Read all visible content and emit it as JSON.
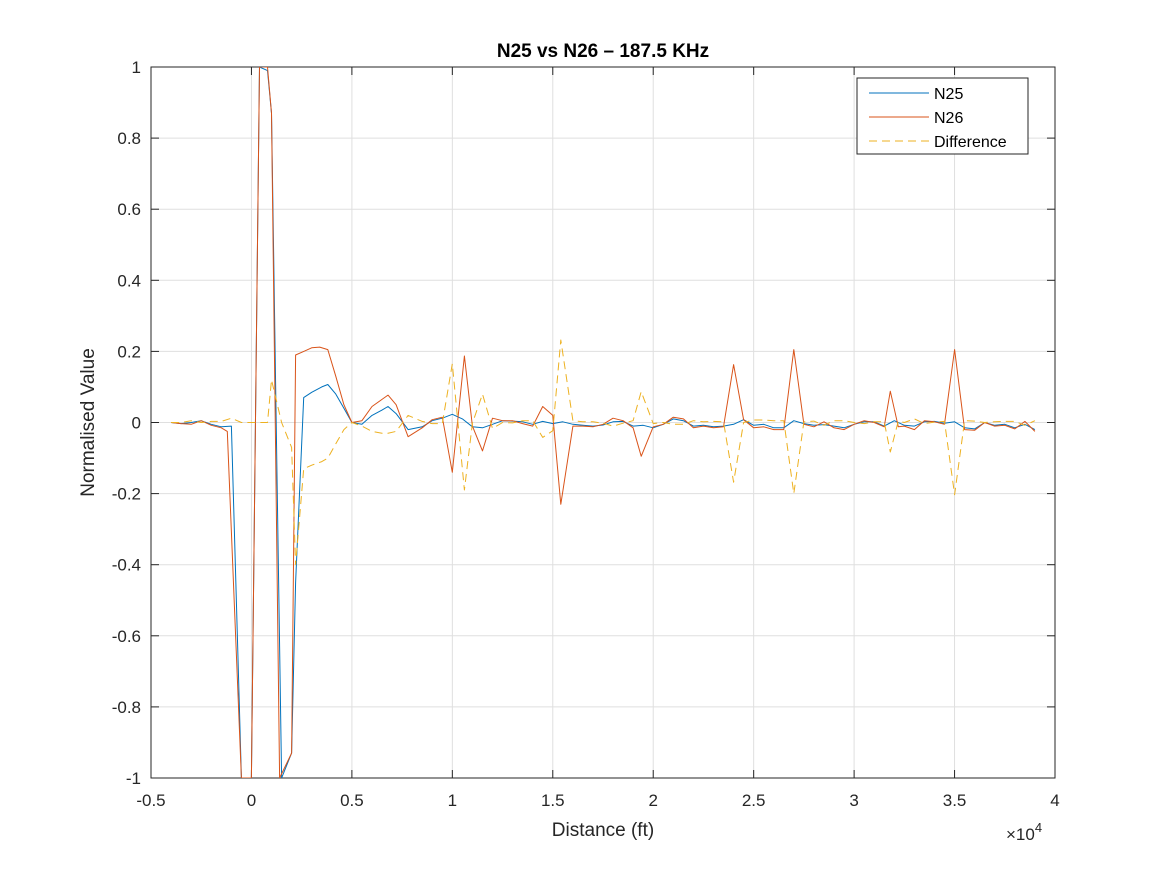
{
  "chart_data": {
    "type": "line",
    "title": "N25 vs N26 – 187.5 KHz",
    "xlabel": "Distance (ft)",
    "ylabel": "Normalised Value",
    "x_exponent_base": "×10",
    "x_exponent_power": "4",
    "xlim": [
      -0.5,
      4
    ],
    "ylim": [
      -1,
      1
    ],
    "grid": true,
    "legend_position": "top-right",
    "x_ticks": [
      -0.5,
      0,
      0.5,
      1,
      1.5,
      2,
      2.5,
      3,
      3.5,
      4
    ],
    "x_tick_labels": [
      "-0.5",
      "0",
      "0.5",
      "1",
      "1.5",
      "2",
      "2.5",
      "3",
      "3.5",
      "4"
    ],
    "y_ticks": [
      -1,
      -0.8,
      -0.6,
      -0.4,
      -0.2,
      0,
      0.2,
      0.4,
      0.6,
      0.8,
      1
    ],
    "y_tick_labels": [
      "-1",
      "-0.8",
      "-0.6",
      "-0.4",
      "-0.2",
      "0",
      "0.2",
      "0.4",
      "0.6",
      "0.8",
      "1"
    ],
    "series": [
      {
        "name": "N25",
        "color": "#0072BD",
        "dash": "solid",
        "points": [
          [
            -0.4,
            0
          ],
          [
            -0.35,
            -0.003
          ],
          [
            -0.3,
            0
          ],
          [
            -0.25,
            0.005
          ],
          [
            -0.2,
            -0.005
          ],
          [
            -0.15,
            -0.012
          ],
          [
            -0.1,
            -0.01
          ],
          [
            -0.05,
            -1.0
          ],
          [
            0.0,
            -1.0
          ],
          [
            0.04,
            1.0
          ],
          [
            0.08,
            0.99
          ],
          [
            0.1,
            0.87
          ],
          [
            0.15,
            -1.0
          ],
          [
            0.2,
            -0.93
          ],
          [
            0.22,
            -0.45
          ],
          [
            0.26,
            0.07
          ],
          [
            0.3,
            0.085
          ],
          [
            0.35,
            0.1
          ],
          [
            0.38,
            0.107
          ],
          [
            0.42,
            0.08
          ],
          [
            0.46,
            0.04
          ],
          [
            0.5,
            0.0
          ],
          [
            0.55,
            -0.005
          ],
          [
            0.6,
            0.02
          ],
          [
            0.65,
            0.035
          ],
          [
            0.68,
            0.045
          ],
          [
            0.72,
            0.025
          ],
          [
            0.78,
            -0.02
          ],
          [
            0.85,
            -0.012
          ],
          [
            0.9,
            0.005
          ],
          [
            0.95,
            0.012
          ],
          [
            1.0,
            0.023
          ],
          [
            1.05,
            0.01
          ],
          [
            1.1,
            -0.012
          ],
          [
            1.15,
            -0.015
          ],
          [
            1.2,
            -0.005
          ],
          [
            1.25,
            0.005
          ],
          [
            1.3,
            0.004
          ],
          [
            1.35,
            0.002
          ],
          [
            1.4,
            -0.005
          ],
          [
            1.45,
            0.003
          ],
          [
            1.5,
            -0.003
          ],
          [
            1.55,
            0.002
          ],
          [
            1.6,
            -0.005
          ],
          [
            1.65,
            -0.008
          ],
          [
            1.7,
            -0.01
          ],
          [
            1.75,
            -0.007
          ],
          [
            1.8,
            0.002
          ],
          [
            1.85,
            0.003
          ],
          [
            1.9,
            -0.01
          ],
          [
            1.95,
            -0.008
          ],
          [
            2.0,
            -0.015
          ],
          [
            2.05,
            -0.005
          ],
          [
            2.1,
            0.01
          ],
          [
            2.15,
            0.005
          ],
          [
            2.2,
            -0.01
          ],
          [
            2.25,
            -0.008
          ],
          [
            2.3,
            -0.012
          ],
          [
            2.35,
            -0.01
          ],
          [
            2.4,
            -0.005
          ],
          [
            2.45,
            0.008
          ],
          [
            2.5,
            -0.008
          ],
          [
            2.55,
            -0.005
          ],
          [
            2.6,
            -0.015
          ],
          [
            2.65,
            -0.015
          ],
          [
            2.7,
            0.005
          ],
          [
            2.75,
            -0.003
          ],
          [
            2.8,
            -0.008
          ],
          [
            2.85,
            -0.006
          ],
          [
            2.9,
            -0.01
          ],
          [
            2.95,
            -0.015
          ],
          [
            3.0,
            -0.005
          ],
          [
            3.05,
            0.002
          ],
          [
            3.1,
            0.002
          ],
          [
            3.15,
            -0.01
          ],
          [
            3.2,
            0.005
          ],
          [
            3.25,
            -0.008
          ],
          [
            3.3,
            -0.01
          ],
          [
            3.35,
            0.002
          ],
          [
            3.4,
            0.003
          ],
          [
            3.45,
            -0.002
          ],
          [
            3.5,
            0.002
          ],
          [
            3.55,
            -0.015
          ],
          [
            3.6,
            -0.018
          ],
          [
            3.65,
            0.0
          ],
          [
            3.7,
            -0.008
          ],
          [
            3.75,
            -0.005
          ],
          [
            3.8,
            -0.015
          ],
          [
            3.85,
            -0.005
          ],
          [
            3.9,
            -0.02
          ]
        ]
      },
      {
        "name": "N26",
        "color": "#D95319",
        "dash": "solid",
        "points": [
          [
            -0.4,
            0
          ],
          [
            -0.35,
            -0.003
          ],
          [
            -0.3,
            -0.005
          ],
          [
            -0.25,
            0.005
          ],
          [
            -0.2,
            -0.008
          ],
          [
            -0.15,
            -0.015
          ],
          [
            -0.12,
            -0.025
          ],
          [
            -0.05,
            -1.0
          ],
          [
            0.0,
            -1.0
          ],
          [
            0.04,
            1.0
          ],
          [
            0.08,
            1.0
          ],
          [
            0.1,
            0.87
          ],
          [
            0.14,
            -1.0
          ],
          [
            0.2,
            -0.93
          ],
          [
            0.22,
            0.19
          ],
          [
            0.26,
            0.2
          ],
          [
            0.3,
            0.21
          ],
          [
            0.34,
            0.212
          ],
          [
            0.38,
            0.205
          ],
          [
            0.42,
            0.13
          ],
          [
            0.46,
            0.05
          ],
          [
            0.5,
            0.0
          ],
          [
            0.55,
            0.005
          ],
          [
            0.6,
            0.045
          ],
          [
            0.65,
            0.065
          ],
          [
            0.68,
            0.077
          ],
          [
            0.72,
            0.05
          ],
          [
            0.78,
            -0.04
          ],
          [
            0.85,
            -0.015
          ],
          [
            0.9,
            0.008
          ],
          [
            0.95,
            0.015
          ],
          [
            1.0,
            -0.14
          ],
          [
            1.06,
            0.187
          ],
          [
            1.1,
            -0.01
          ],
          [
            1.15,
            -0.08
          ],
          [
            1.2,
            0.012
          ],
          [
            1.25,
            0.005
          ],
          [
            1.3,
            0.005
          ],
          [
            1.35,
            -0.003
          ],
          [
            1.4,
            -0.01
          ],
          [
            1.45,
            0.045
          ],
          [
            1.5,
            0.02
          ],
          [
            1.54,
            -0.23
          ],
          [
            1.6,
            -0.01
          ],
          [
            1.65,
            -0.01
          ],
          [
            1.7,
            -0.012
          ],
          [
            1.75,
            -0.005
          ],
          [
            1.8,
            0.012
          ],
          [
            1.85,
            0.005
          ],
          [
            1.9,
            -0.015
          ],
          [
            1.94,
            -0.095
          ],
          [
            2.0,
            -0.012
          ],
          [
            2.05,
            -0.005
          ],
          [
            2.1,
            0.015
          ],
          [
            2.15,
            0.01
          ],
          [
            2.2,
            -0.015
          ],
          [
            2.25,
            -0.01
          ],
          [
            2.3,
            -0.015
          ],
          [
            2.35,
            -0.012
          ],
          [
            2.4,
            0.163
          ],
          [
            2.45,
            0.008
          ],
          [
            2.5,
            -0.015
          ],
          [
            2.55,
            -0.012
          ],
          [
            2.6,
            -0.02
          ],
          [
            2.65,
            -0.02
          ],
          [
            2.7,
            0.205
          ],
          [
            2.75,
            -0.005
          ],
          [
            2.8,
            -0.012
          ],
          [
            2.85,
            0.002
          ],
          [
            2.9,
            -0.015
          ],
          [
            2.95,
            -0.02
          ],
          [
            3.0,
            -0.005
          ],
          [
            3.05,
            0.005
          ],
          [
            3.1,
            0.0
          ],
          [
            3.15,
            -0.012
          ],
          [
            3.18,
            0.088
          ],
          [
            3.22,
            -0.012
          ],
          [
            3.25,
            -0.01
          ],
          [
            3.3,
            -0.02
          ],
          [
            3.35,
            0.005
          ],
          [
            3.4,
            0.002
          ],
          [
            3.45,
            -0.005
          ],
          [
            3.5,
            0.205
          ],
          [
            3.55,
            -0.02
          ],
          [
            3.6,
            -0.022
          ],
          [
            3.65,
            0.0
          ],
          [
            3.7,
            -0.01
          ],
          [
            3.75,
            -0.008
          ],
          [
            3.8,
            -0.018
          ],
          [
            3.85,
            0.003
          ],
          [
            3.9,
            -0.025
          ]
        ]
      },
      {
        "name": "Difference",
        "color": "#EDB120",
        "dash": "dashed",
        "points": [
          [
            -0.4,
            0
          ],
          [
            -0.35,
            0.0
          ],
          [
            -0.3,
            0.005
          ],
          [
            -0.25,
            0.0
          ],
          [
            -0.2,
            0.003
          ],
          [
            -0.15,
            0.003
          ],
          [
            -0.1,
            0.012
          ],
          [
            -0.05,
            0.0
          ],
          [
            0.0,
            0.0
          ],
          [
            0.04,
            0.0
          ],
          [
            0.08,
            0.0
          ],
          [
            0.1,
            0.12
          ],
          [
            0.15,
            0.0
          ],
          [
            0.2,
            -0.07
          ],
          [
            0.22,
            -0.4
          ],
          [
            0.26,
            -0.13
          ],
          [
            0.3,
            -0.12
          ],
          [
            0.35,
            -0.11
          ],
          [
            0.38,
            -0.1
          ],
          [
            0.42,
            -0.06
          ],
          [
            0.46,
            -0.02
          ],
          [
            0.5,
            0.0
          ],
          [
            0.55,
            -0.01
          ],
          [
            0.6,
            -0.025
          ],
          [
            0.65,
            -0.03
          ],
          [
            0.68,
            -0.03
          ],
          [
            0.72,
            -0.025
          ],
          [
            0.78,
            0.02
          ],
          [
            0.85,
            0.003
          ],
          [
            0.9,
            -0.003
          ],
          [
            0.95,
            -0.003
          ],
          [
            1.0,
            0.165
          ],
          [
            1.06,
            -0.19
          ],
          [
            1.1,
            -0.002
          ],
          [
            1.15,
            0.08
          ],
          [
            1.2,
            -0.017
          ],
          [
            1.25,
            0.0
          ],
          [
            1.3,
            -0.001
          ],
          [
            1.35,
            0.005
          ],
          [
            1.4,
            0.005
          ],
          [
            1.45,
            -0.042
          ],
          [
            1.5,
            -0.023
          ],
          [
            1.54,
            0.232
          ],
          [
            1.6,
            0.005
          ],
          [
            1.65,
            0.002
          ],
          [
            1.7,
            0.002
          ],
          [
            1.75,
            -0.002
          ],
          [
            1.8,
            -0.01
          ],
          [
            1.85,
            -0.002
          ],
          [
            1.9,
            0.005
          ],
          [
            1.94,
            0.087
          ],
          [
            2.0,
            -0.003
          ],
          [
            2.05,
            0.0
          ],
          [
            2.1,
            -0.005
          ],
          [
            2.15,
            -0.005
          ],
          [
            2.2,
            0.005
          ],
          [
            2.25,
            0.002
          ],
          [
            2.3,
            0.003
          ],
          [
            2.35,
            0.002
          ],
          [
            2.4,
            -0.168
          ],
          [
            2.45,
            0.0
          ],
          [
            2.5,
            0.007
          ],
          [
            2.55,
            0.007
          ],
          [
            2.6,
            0.005
          ],
          [
            2.65,
            0.005
          ],
          [
            2.7,
            -0.2
          ],
          [
            2.75,
            0.002
          ],
          [
            2.8,
            0.004
          ],
          [
            2.85,
            -0.008
          ],
          [
            2.9,
            0.005
          ],
          [
            2.95,
            0.005
          ],
          [
            3.0,
            0.0
          ],
          [
            3.05,
            -0.003
          ],
          [
            3.1,
            0.002
          ],
          [
            3.15,
            0.002
          ],
          [
            3.18,
            -0.083
          ],
          [
            3.22,
            0.004
          ],
          [
            3.25,
            0.0
          ],
          [
            3.3,
            0.01
          ],
          [
            3.35,
            -0.003
          ],
          [
            3.4,
            0.001
          ],
          [
            3.45,
            0.003
          ],
          [
            3.5,
            -0.203
          ],
          [
            3.55,
            0.005
          ],
          [
            3.6,
            0.004
          ],
          [
            3.65,
            0.0
          ],
          [
            3.7,
            0.002
          ],
          [
            3.75,
            0.003
          ],
          [
            3.8,
            0.003
          ],
          [
            3.85,
            -0.008
          ],
          [
            3.9,
            0.005
          ]
        ]
      }
    ]
  }
}
